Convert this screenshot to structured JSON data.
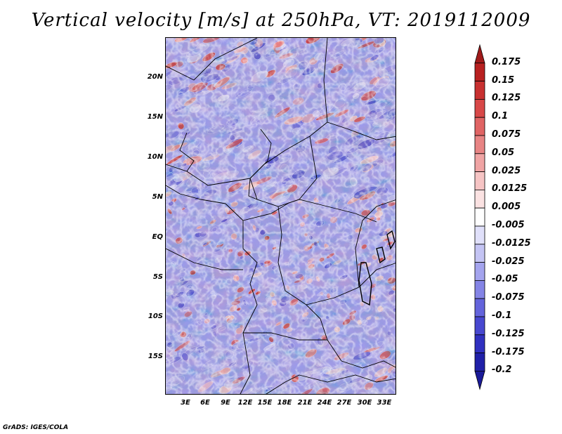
{
  "title": "Vertical velocity [m/s] at 250hPa, VT: 2019112009",
  "footer": "GrADS: IGES/COLA",
  "map": {
    "lat_ticks": [
      "20N",
      "15N",
      "10N",
      "5N",
      "EQ",
      "5S",
      "10S",
      "15S"
    ],
    "lon_ticks": [
      "3E",
      "6E",
      "9E",
      "12E",
      "15E",
      "18E",
      "21E",
      "24E",
      "27E",
      "30E",
      "33E"
    ]
  },
  "colorbar": {
    "labels": [
      "0.175",
      "0.15",
      "0.125",
      "0.1",
      "0.075",
      "0.05",
      "0.025",
      "0.0125",
      "0.005",
      "-0.005",
      "-0.0125",
      "-0.025",
      "-0.05",
      "-0.075",
      "-0.1",
      "-0.125",
      "-0.175",
      "-0.2"
    ],
    "colors": [
      "#a01a1a",
      "#b82020",
      "#c83030",
      "#d84848",
      "#e06464",
      "#e88484",
      "#f0a4a4",
      "#f6c4c4",
      "#fbe2e2",
      "#ffffff",
      "#e0e0fa",
      "#c4c4f4",
      "#a4a4ee",
      "#8484e6",
      "#6464dc",
      "#4848d0",
      "#3030c0",
      "#2020a8",
      "#1a1a98"
    ]
  }
}
